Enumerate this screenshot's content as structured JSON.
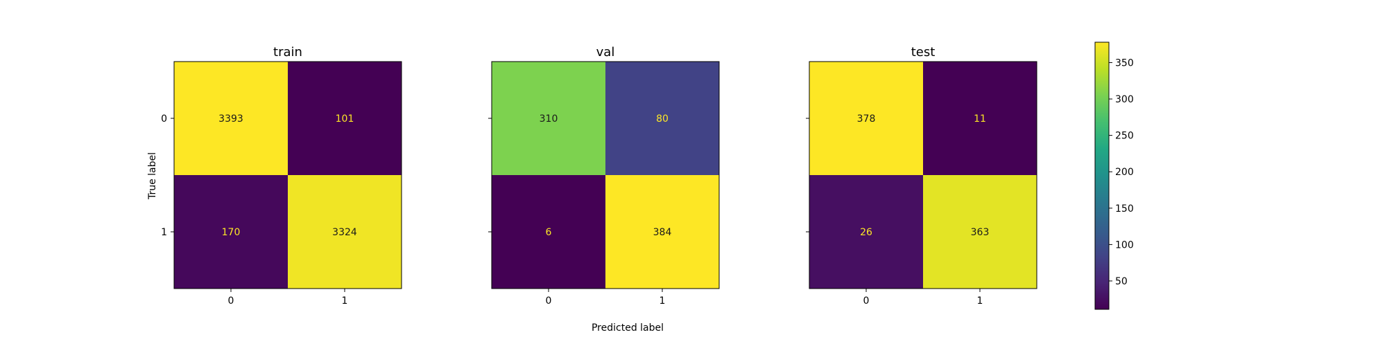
{
  "chart_data": {
    "type": "heatmap",
    "xlabel": "Predicted label",
    "ylabel": "True label",
    "class_labels": [
      "0",
      "1"
    ],
    "colorscale": "viridis",
    "colorbar": {
      "vmin": 11,
      "vmax": 378,
      "ticks": [
        50,
        100,
        150,
        200,
        250,
        300,
        350
      ]
    },
    "panels": [
      {
        "title": "train",
        "matrix": [
          [
            3393,
            101
          ],
          [
            170,
            3324
          ]
        ]
      },
      {
        "title": "val",
        "matrix": [
          [
            310,
            80
          ],
          [
            6,
            384
          ]
        ]
      },
      {
        "title": "test",
        "matrix": [
          [
            378,
            11
          ],
          [
            26,
            363
          ]
        ]
      }
    ]
  }
}
